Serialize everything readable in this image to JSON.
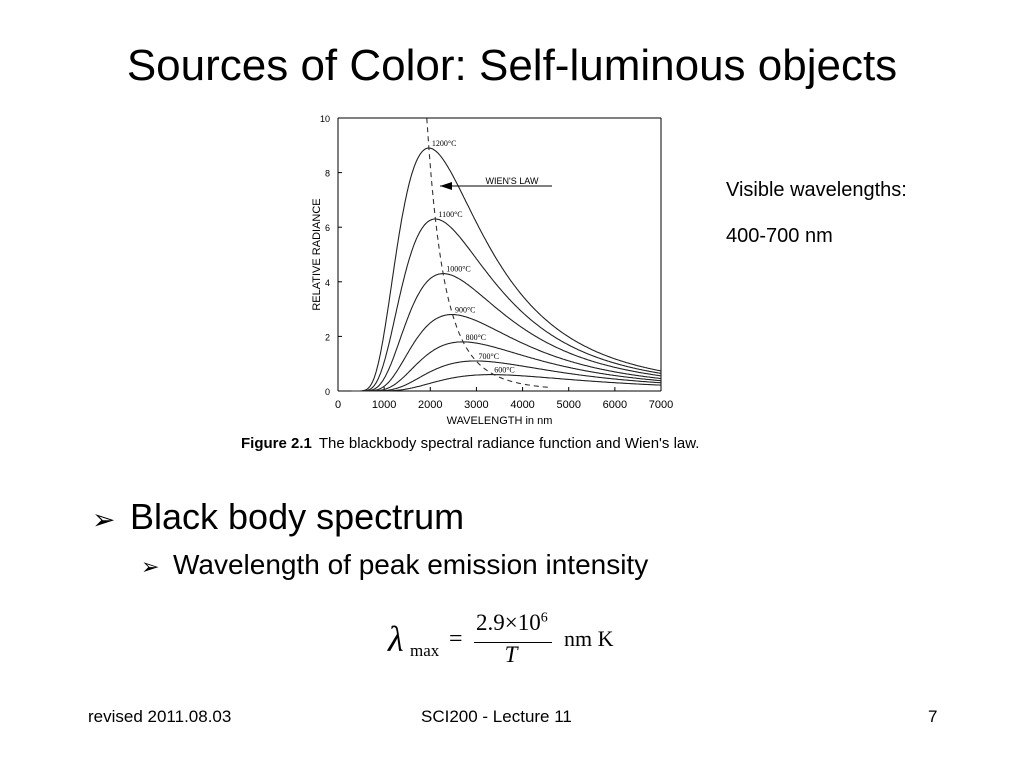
{
  "slide": {
    "title": "Sources of Color: Self-luminous objects",
    "note_line1": "Visible wavelengths:",
    "note_line2": "400-700 nm",
    "caption_label": "Figure 2.1",
    "caption_text": "The blackbody spectral radiance function and Wien's law.",
    "bullet1": "Black body spectrum",
    "bullet2": "Wavelength of peak emission intensity",
    "formula": {
      "symbol": "λ",
      "subscript": "max",
      "equals": "=",
      "numerator": "2.9×10",
      "exponent": "6",
      "denominator": "T",
      "unit": "nm K"
    },
    "footer_left": "revised 2011.08.03",
    "footer_center": "SCI200 - Lecture 11",
    "footer_right": "7"
  },
  "chart_data": {
    "type": "line",
    "xlabel": "WAVELENGTH in nm",
    "ylabel": "RELATIVE RADIANCE",
    "xlim": [
      0,
      7000
    ],
    "ylim": [
      0,
      10
    ],
    "x_ticks": [
      0,
      1000,
      2000,
      3000,
      4000,
      5000,
      6000,
      7000
    ],
    "y_ticks": [
      0,
      2,
      4,
      6,
      8,
      10
    ],
    "series": [
      {
        "name": "1200°C",
        "peak_x": 1970,
        "peak_y": 8.9
      },
      {
        "name": "1100°C",
        "peak_x": 2110,
        "peak_y": 6.3
      },
      {
        "name": "1000°C",
        "peak_x": 2280,
        "peak_y": 4.3
      },
      {
        "name": "900°C",
        "peak_x": 2470,
        "peak_y": 2.8
      },
      {
        "name": "800°C",
        "peak_x": 2700,
        "peak_y": 1.8
      },
      {
        "name": "700°C",
        "peak_x": 2980,
        "peak_y": 1.1
      },
      {
        "name": "600°C",
        "peak_x": 3320,
        "peak_y": 0.6
      }
    ],
    "wien_curve_label": "WIEN'S LAW",
    "wien_constant_nm_K": 2898000,
    "grid": false
  }
}
